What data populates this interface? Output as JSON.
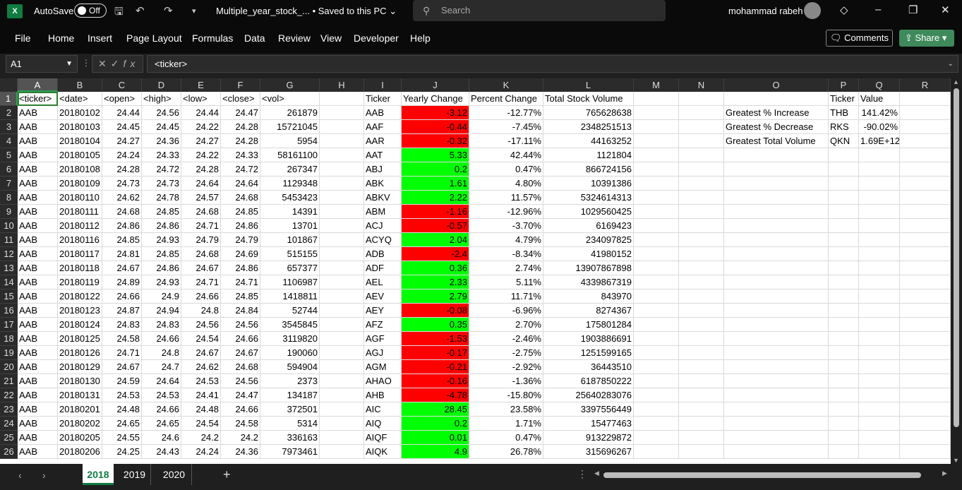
{
  "titlebar": {
    "autosave": "AutoSave",
    "toggle": "Off",
    "filename": "Multiple_year_stock_...",
    "saved": "• Saved to this PC",
    "search": "Search",
    "user": "mohammad rabeh"
  },
  "menu": [
    "File",
    "Home",
    "Insert",
    "Page Layout",
    "Formulas",
    "Data",
    "Review",
    "View",
    "Developer",
    "Help"
  ],
  "comments": "Comments",
  "share": "Share",
  "namebox": "A1",
  "formula": "<ticker>",
  "columns": [
    "A",
    "B",
    "C",
    "D",
    "E",
    "F",
    "G",
    "H",
    "I",
    "J",
    "K",
    "L",
    "M",
    "N",
    "O",
    "P",
    "Q",
    "R"
  ],
  "rows": [
    [
      "<ticker>",
      "<date>",
      "<open>",
      "<high>",
      "<low>",
      "<close>",
      "<vol>",
      "",
      "Ticker",
      "Yearly Change",
      "Percent Change",
      "Total Stock Volume",
      "",
      "",
      "",
      "Ticker",
      "Value",
      ""
    ],
    [
      "AAB",
      "20180102",
      "24.44",
      "24.56",
      "24.44",
      "24.47",
      "261879",
      "",
      "AAB",
      "-3.12",
      "-12.77%",
      "765628638",
      "",
      "",
      "Greatest % Increase",
      "THB",
      "141.42%",
      ""
    ],
    [
      "AAB",
      "20180103",
      "24.45",
      "24.45",
      "24.22",
      "24.28",
      "15721045",
      "",
      "AAF",
      "-0.44",
      "-7.45%",
      "2348251513",
      "",
      "",
      "Greatest % Decrease",
      "RKS",
      "-90.02%",
      ""
    ],
    [
      "AAB",
      "20180104",
      "24.27",
      "24.36",
      "24.27",
      "24.28",
      "5954",
      "",
      "AAR",
      "-0.32",
      "-17.11%",
      "44163252",
      "",
      "",
      "Greatest Total Volume",
      "QKN",
      "1.69E+12",
      ""
    ],
    [
      "AAB",
      "20180105",
      "24.24",
      "24.33",
      "24.22",
      "24.33",
      "58161100",
      "",
      "AAT",
      "5.33",
      "42.44%",
      "1121804",
      "",
      "",
      "",
      "",
      "",
      ""
    ],
    [
      "AAB",
      "20180108",
      "24.28",
      "24.72",
      "24.28",
      "24.72",
      "267347",
      "",
      "ABJ",
      "0.2",
      "0.47%",
      "866724156",
      "",
      "",
      "",
      "",
      "",
      ""
    ],
    [
      "AAB",
      "20180109",
      "24.73",
      "24.73",
      "24.64",
      "24.64",
      "1129348",
      "",
      "ABK",
      "1.61",
      "4.80%",
      "10391386",
      "",
      "",
      "",
      "",
      "",
      ""
    ],
    [
      "AAB",
      "20180110",
      "24.62",
      "24.78",
      "24.57",
      "24.68",
      "5453423",
      "",
      "ABKV",
      "2.22",
      "11.57%",
      "5324614313",
      "",
      "",
      "",
      "",
      "",
      ""
    ],
    [
      "AAB",
      "20180111",
      "24.68",
      "24.85",
      "24.68",
      "24.85",
      "14391",
      "",
      "ABM",
      "-1.16",
      "-12.96%",
      "1029560425",
      "",
      "",
      "",
      "",
      "",
      ""
    ],
    [
      "AAB",
      "20180112",
      "24.86",
      "24.86",
      "24.71",
      "24.86",
      "13701",
      "",
      "ACJ",
      "-0.57",
      "-3.70%",
      "6169423",
      "",
      "",
      "",
      "",
      "",
      ""
    ],
    [
      "AAB",
      "20180116",
      "24.85",
      "24.93",
      "24.79",
      "24.79",
      "101867",
      "",
      "ACYQ",
      "2.04",
      "4.79%",
      "234097825",
      "",
      "",
      "",
      "",
      "",
      ""
    ],
    [
      "AAB",
      "20180117",
      "24.81",
      "24.85",
      "24.68",
      "24.69",
      "515155",
      "",
      "ADB",
      "-2.4",
      "-8.34%",
      "41980152",
      "",
      "",
      "",
      "",
      "",
      ""
    ],
    [
      "AAB",
      "20180118",
      "24.67",
      "24.86",
      "24.67",
      "24.86",
      "657377",
      "",
      "ADF",
      "0.36",
      "2.74%",
      "13907867898",
      "",
      "",
      "",
      "",
      "",
      ""
    ],
    [
      "AAB",
      "20180119",
      "24.89",
      "24.93",
      "24.71",
      "24.71",
      "1106987",
      "",
      "AEL",
      "2.33",
      "5.11%",
      "4339867319",
      "",
      "",
      "",
      "",
      "",
      ""
    ],
    [
      "AAB",
      "20180122",
      "24.66",
      "24.9",
      "24.66",
      "24.85",
      "1418811",
      "",
      "AEV",
      "2.79",
      "11.71%",
      "843970",
      "",
      "",
      "",
      "",
      "",
      ""
    ],
    [
      "AAB",
      "20180123",
      "24.87",
      "24.94",
      "24.8",
      "24.84",
      "52744",
      "",
      "AEY",
      "-0.08",
      "-6.96%",
      "8274367",
      "",
      "",
      "",
      "",
      "",
      ""
    ],
    [
      "AAB",
      "20180124",
      "24.83",
      "24.83",
      "24.56",
      "24.56",
      "3545845",
      "",
      "AFZ",
      "0.35",
      "2.70%",
      "175801284",
      "",
      "",
      "",
      "",
      "",
      ""
    ],
    [
      "AAB",
      "20180125",
      "24.58",
      "24.66",
      "24.54",
      "24.66",
      "3119820",
      "",
      "AGF",
      "-1.53",
      "-2.46%",
      "1903886691",
      "",
      "",
      "",
      "",
      "",
      ""
    ],
    [
      "AAB",
      "20180126",
      "24.71",
      "24.8",
      "24.67",
      "24.67",
      "190060",
      "",
      "AGJ",
      "-0.17",
      "-2.75%",
      "1251599165",
      "",
      "",
      "",
      "",
      "",
      ""
    ],
    [
      "AAB",
      "20180129",
      "24.67",
      "24.7",
      "24.62",
      "24.68",
      "594904",
      "",
      "AGM",
      "-0.21",
      "-2.92%",
      "36443510",
      "",
      "",
      "",
      "",
      "",
      ""
    ],
    [
      "AAB",
      "20180130",
      "24.59",
      "24.64",
      "24.53",
      "24.56",
      "2373",
      "",
      "AHAO",
      "-0.16",
      "-1.36%",
      "6187850222",
      "",
      "",
      "",
      "",
      "",
      ""
    ],
    [
      "AAB",
      "20180131",
      "24.53",
      "24.53",
      "24.41",
      "24.47",
      "134187",
      "",
      "AHB",
      "-4.78",
      "-15.80%",
      "25640283076",
      "",
      "",
      "",
      "",
      "",
      ""
    ],
    [
      "AAB",
      "20180201",
      "24.48",
      "24.66",
      "24.48",
      "24.66",
      "372501",
      "",
      "AIC",
      "28.45",
      "23.58%",
      "3397556449",
      "",
      "",
      "",
      "",
      "",
      ""
    ],
    [
      "AAB",
      "20180202",
      "24.65",
      "24.65",
      "24.54",
      "24.58",
      "5314",
      "",
      "AIQ",
      "0.2",
      "1.71%",
      "15477463",
      "",
      "",
      "",
      "",
      "",
      ""
    ],
    [
      "AAB",
      "20180205",
      "24.55",
      "24.6",
      "24.2",
      "24.2",
      "336163",
      "",
      "AIQF",
      "0.01",
      "0.47%",
      "913229872",
      "",
      "",
      "",
      "",
      "",
      ""
    ],
    [
      "AAB",
      "20180206",
      "24.25",
      "24.43",
      "24.24",
      "24.36",
      "7973461",
      "",
      "AIQK",
      "4.9",
      "26.78%",
      "315696267",
      "",
      "",
      "",
      "",
      "",
      ""
    ]
  ],
  "sheets": [
    "2018",
    "2019",
    "2020"
  ],
  "colors": {
    "negative": "#ff0000",
    "positive": "#00ff00",
    "accent": "#107c41"
  }
}
